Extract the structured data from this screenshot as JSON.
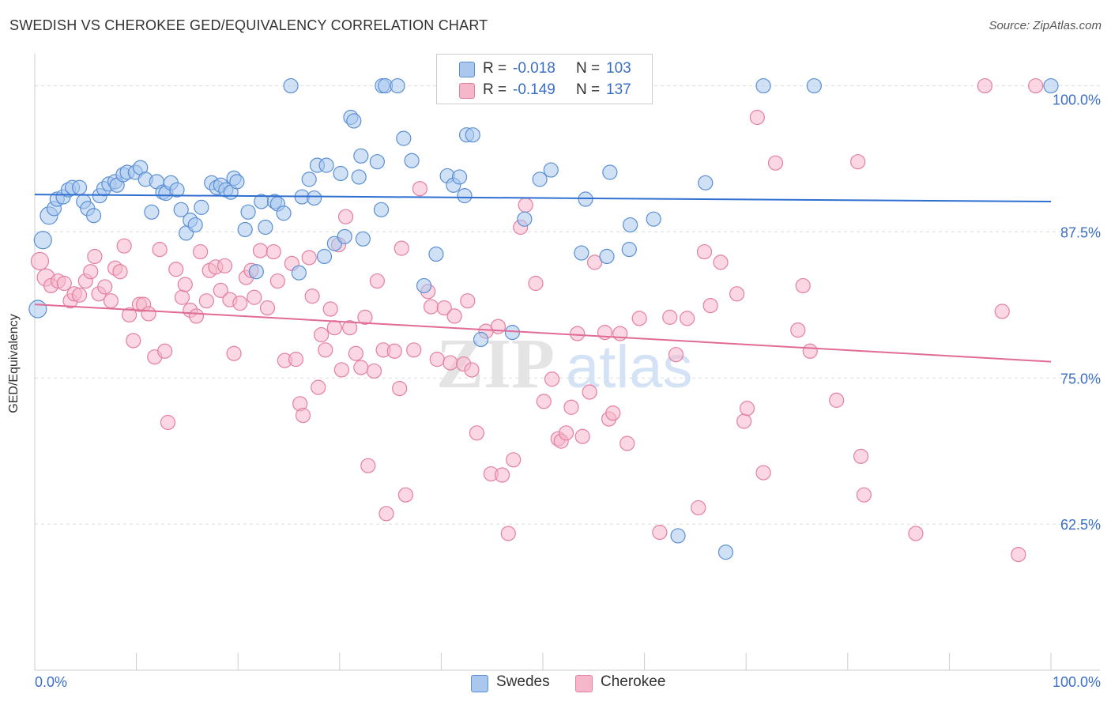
{
  "header": {
    "title": "SWEDISH VS CHEROKEE GED/EQUIVALENCY CORRELATION CHART",
    "source": "Source: ZipAtlas.com"
  },
  "watermark": {
    "part1": "ZIP",
    "part2": "atlas"
  },
  "legend": {
    "rows": [
      {
        "r_label": "R =",
        "r_value": "-0.018",
        "n_label": "N =",
        "n_value": "103"
      },
      {
        "r_label": "R =",
        "r_value": "-0.149",
        "n_label": "N =",
        "n_value": "137"
      }
    ]
  },
  "bottom_legend": [
    "Swedes",
    "Cherokee"
  ],
  "colors": {
    "swedes_fill": "#aac8ee",
    "swedes_stroke": "#5a8fd4",
    "swedes_line": "#2f6fd0",
    "cherokee_fill": "#f5b7ca",
    "cherokee_stroke": "#e57fa0",
    "cherokee_line": "#e06b96",
    "tick_label": "#3b6fc4",
    "grid": "#dddddd"
  },
  "chart_data": {
    "type": "scatter",
    "title": "SWEDISH VS CHEROKEE GED/EQUIVALENCY CORRELATION CHART",
    "xlabel": "",
    "ylabel": "GED/Equivalency",
    "xlim": [
      0,
      100
    ],
    "ylim": [
      50,
      102
    ],
    "x_tick_labels": [
      "0.0%",
      "100.0%"
    ],
    "y_ticks": [
      62.5,
      75.0,
      87.5,
      100.0
    ],
    "y_tick_labels": [
      "62.5%",
      "75.0%",
      "87.5%",
      "100.0%"
    ],
    "grid": "horizontal dashed",
    "legend_position": "top-center",
    "series": [
      {
        "name": "Swedes",
        "R": -0.018,
        "N": 103,
        "trend": {
          "x": [
            0,
            100
          ],
          "y": [
            90.7,
            90.1
          ]
        },
        "points": [
          [
            0.3,
            80.9
          ],
          [
            0.8,
            86.8
          ],
          [
            1.4,
            88.9
          ],
          [
            1.9,
            89.5
          ],
          [
            2.2,
            90.3
          ],
          [
            2.8,
            90.5
          ],
          [
            3.3,
            91.1
          ],
          [
            3.7,
            91.3
          ],
          [
            4.4,
            91.3
          ],
          [
            4.8,
            90.1
          ],
          [
            5.2,
            89.5
          ],
          [
            5.8,
            88.9
          ],
          [
            6.4,
            90.6
          ],
          [
            6.8,
            91.2
          ],
          [
            7.3,
            91.6
          ],
          [
            7.9,
            91.8
          ],
          [
            8.1,
            91.5
          ],
          [
            8.7,
            92.4
          ],
          [
            9.1,
            92.6
          ],
          [
            9.9,
            92.6
          ],
          [
            10.4,
            93.0
          ],
          [
            10.9,
            92.0
          ],
          [
            11.5,
            89.2
          ],
          [
            12.0,
            91.8
          ],
          [
            12.6,
            90.9
          ],
          [
            12.9,
            90.8
          ],
          [
            13.4,
            91.7
          ],
          [
            14.0,
            91.1
          ],
          [
            14.4,
            89.4
          ],
          [
            14.9,
            87.4
          ],
          [
            15.3,
            88.5
          ],
          [
            15.8,
            88.1
          ],
          [
            16.4,
            89.6
          ],
          [
            17.4,
            91.7
          ],
          [
            17.9,
            91.3
          ],
          [
            18.3,
            91.5
          ],
          [
            18.8,
            91.1
          ],
          [
            19.3,
            90.9
          ],
          [
            19.6,
            92.1
          ],
          [
            19.9,
            91.8
          ],
          [
            20.7,
            87.7
          ],
          [
            21.0,
            89.2
          ],
          [
            21.8,
            84.1
          ],
          [
            22.7,
            87.9
          ],
          [
            22.3,
            90.1
          ],
          [
            23.6,
            90.1
          ],
          [
            23.9,
            89.9
          ],
          [
            24.5,
            89.1
          ],
          [
            25.2,
            100.0
          ],
          [
            26.0,
            84.0
          ],
          [
            26.3,
            90.5
          ],
          [
            27.0,
            92.0
          ],
          [
            27.5,
            90.4
          ],
          [
            27.8,
            93.2
          ],
          [
            28.5,
            85.4
          ],
          [
            28.7,
            93.2
          ],
          [
            29.5,
            86.5
          ],
          [
            30.1,
            92.5
          ],
          [
            30.5,
            87.1
          ],
          [
            31.1,
            97.3
          ],
          [
            31.4,
            97.0
          ],
          [
            31.9,
            92.2
          ],
          [
            32.1,
            94.0
          ],
          [
            32.3,
            86.9
          ],
          [
            33.7,
            93.5
          ],
          [
            34.1,
            89.4
          ],
          [
            34.2,
            100.0
          ],
          [
            34.5,
            100.0
          ],
          [
            35.7,
            100.0
          ],
          [
            36.3,
            95.5
          ],
          [
            37.1,
            93.6
          ],
          [
            38.3,
            82.9
          ],
          [
            39.5,
            85.6
          ],
          [
            40.6,
            92.3
          ],
          [
            41.2,
            91.5
          ],
          [
            41.8,
            92.2
          ],
          [
            42.3,
            90.6
          ],
          [
            42.5,
            95.8
          ],
          [
            43.1,
            95.8
          ],
          [
            43.9,
            78.3
          ],
          [
            44.8,
            100.0
          ],
          [
            47.0,
            78.9
          ],
          [
            48.2,
            88.6
          ],
          [
            49.7,
            92.0
          ],
          [
            50.8,
            92.8
          ],
          [
            53.8,
            85.7
          ],
          [
            54.2,
            90.3
          ],
          [
            56.3,
            85.4
          ],
          [
            56.6,
            92.6
          ],
          [
            58.5,
            86.0
          ],
          [
            58.6,
            88.1
          ],
          [
            60.9,
            88.6
          ],
          [
            63.3,
            61.5
          ],
          [
            66.0,
            91.7
          ],
          [
            68.0,
            60.1
          ],
          [
            71.7,
            100.0
          ],
          [
            76.7,
            100.0
          ],
          [
            100.0,
            100.0
          ]
        ]
      },
      {
        "name": "Cherokee",
        "R": -0.149,
        "N": 137,
        "trend": {
          "x": [
            0,
            100
          ],
          "y": [
            81.3,
            76.4
          ]
        },
        "points": [
          [
            0.5,
            85.0
          ],
          [
            1.1,
            83.6
          ],
          [
            1.6,
            82.9
          ],
          [
            2.3,
            83.3
          ],
          [
            2.9,
            83.1
          ],
          [
            3.5,
            81.6
          ],
          [
            3.9,
            82.2
          ],
          [
            4.4,
            82.1
          ],
          [
            5.0,
            83.3
          ],
          [
            5.5,
            84.1
          ],
          [
            5.9,
            85.4
          ],
          [
            6.3,
            82.2
          ],
          [
            6.9,
            82.8
          ],
          [
            7.5,
            81.6
          ],
          [
            7.9,
            84.4
          ],
          [
            8.4,
            84.1
          ],
          [
            8.8,
            86.3
          ],
          [
            9.3,
            80.4
          ],
          [
            9.7,
            78.2
          ],
          [
            10.3,
            81.3
          ],
          [
            10.7,
            81.3
          ],
          [
            11.2,
            80.5
          ],
          [
            11.8,
            76.8
          ],
          [
            12.3,
            86.0
          ],
          [
            12.8,
            77.3
          ],
          [
            13.1,
            71.2
          ],
          [
            13.9,
            84.3
          ],
          [
            14.5,
            81.9
          ],
          [
            14.8,
            83.0
          ],
          [
            15.3,
            80.8
          ],
          [
            15.9,
            80.3
          ],
          [
            16.3,
            85.8
          ],
          [
            16.9,
            81.6
          ],
          [
            17.2,
            84.2
          ],
          [
            17.8,
            84.5
          ],
          [
            18.3,
            82.5
          ],
          [
            18.7,
            84.6
          ],
          [
            19.2,
            81.7
          ],
          [
            19.6,
            77.1
          ],
          [
            20.2,
            81.4
          ],
          [
            20.8,
            83.6
          ],
          [
            21.3,
            84.2
          ],
          [
            21.6,
            81.9
          ],
          [
            22.2,
            85.9
          ],
          [
            22.9,
            81.0
          ],
          [
            23.5,
            85.8
          ],
          [
            23.9,
            83.3
          ],
          [
            24.6,
            76.5
          ],
          [
            25.3,
            84.8
          ],
          [
            25.7,
            76.6
          ],
          [
            26.1,
            72.8
          ],
          [
            26.4,
            71.8
          ],
          [
            27.0,
            85.3
          ],
          [
            27.3,
            82.0
          ],
          [
            27.9,
            74.2
          ],
          [
            28.2,
            78.7
          ],
          [
            28.6,
            77.4
          ],
          [
            29.1,
            80.9
          ],
          [
            29.5,
            79.3
          ],
          [
            29.9,
            86.4
          ],
          [
            30.2,
            75.7
          ],
          [
            30.6,
            88.8
          ],
          [
            31.0,
            79.3
          ],
          [
            31.6,
            77.1
          ],
          [
            32.1,
            75.9
          ],
          [
            32.5,
            80.2
          ],
          [
            32.8,
            67.5
          ],
          [
            33.4,
            75.6
          ],
          [
            33.7,
            83.3
          ],
          [
            34.3,
            77.4
          ],
          [
            34.6,
            63.4
          ],
          [
            35.4,
            77.3
          ],
          [
            35.9,
            74.1
          ],
          [
            36.1,
            86.1
          ],
          [
            36.5,
            65.0
          ],
          [
            37.3,
            77.4
          ],
          [
            37.9,
            91.2
          ],
          [
            38.7,
            82.4
          ],
          [
            39.0,
            81.1
          ],
          [
            39.6,
            76.6
          ],
          [
            40.3,
            81.0
          ],
          [
            40.9,
            76.3
          ],
          [
            41.3,
            80.3
          ],
          [
            42.2,
            76.2
          ],
          [
            42.6,
            81.6
          ],
          [
            43.0,
            75.7
          ],
          [
            43.5,
            70.3
          ],
          [
            44.4,
            79.0
          ],
          [
            44.9,
            66.8
          ],
          [
            45.6,
            79.4
          ],
          [
            46.0,
            66.7
          ],
          [
            46.6,
            61.7
          ],
          [
            47.1,
            68.0
          ],
          [
            47.8,
            87.9
          ],
          [
            48.3,
            89.8
          ],
          [
            49.3,
            83.1
          ],
          [
            50.1,
            73.0
          ],
          [
            50.9,
            74.9
          ],
          [
            51.5,
            69.8
          ],
          [
            51.8,
            69.6
          ],
          [
            52.3,
            70.3
          ],
          [
            52.8,
            72.5
          ],
          [
            53.4,
            78.8
          ],
          [
            53.9,
            70.0
          ],
          [
            54.6,
            73.8
          ],
          [
            55.1,
            84.9
          ],
          [
            56.1,
            78.9
          ],
          [
            56.5,
            71.5
          ],
          [
            56.9,
            72.0
          ],
          [
            57.6,
            78.8
          ],
          [
            58.3,
            69.4
          ],
          [
            59.5,
            80.1
          ],
          [
            61.5,
            61.8
          ],
          [
            62.5,
            80.2
          ],
          [
            63.1,
            77.0
          ],
          [
            64.2,
            80.1
          ],
          [
            65.3,
            63.9
          ],
          [
            65.9,
            85.8
          ],
          [
            66.5,
            81.2
          ],
          [
            67.5,
            84.9
          ],
          [
            69.1,
            82.2
          ],
          [
            69.8,
            71.3
          ],
          [
            70.1,
            72.4
          ],
          [
            71.1,
            97.3
          ],
          [
            71.7,
            66.9
          ],
          [
            72.9,
            93.4
          ],
          [
            75.1,
            79.1
          ],
          [
            75.6,
            82.9
          ],
          [
            76.3,
            77.3
          ],
          [
            78.9,
            73.1
          ],
          [
            81.0,
            93.5
          ],
          [
            81.3,
            68.3
          ],
          [
            81.6,
            65.0
          ],
          [
            86.7,
            61.7
          ],
          [
            93.5,
            100.0
          ],
          [
            95.2,
            80.7
          ],
          [
            96.8,
            59.9
          ],
          [
            98.5,
            100.0
          ]
        ]
      }
    ]
  }
}
